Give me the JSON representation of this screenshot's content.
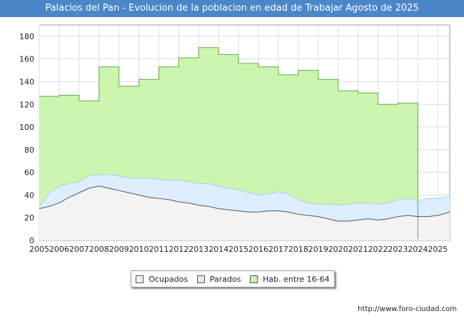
{
  "title": "Palacios del Pan - Evolucion de la poblacion en edad de Trabajar Agosto de 2025",
  "footer_url": "http://www.foro-ciudad.com",
  "chart_data": {
    "type": "area",
    "x_ticks": [
      "2005",
      "2006",
      "2007",
      "2008",
      "2009",
      "2010",
      "2011",
      "2012",
      "2013",
      "2014",
      "2015",
      "2016",
      "2017",
      "2018",
      "2019",
      "2020",
      "2021",
      "2022",
      "2023",
      "2024",
      "2025"
    ],
    "y_ticks": [
      0,
      20,
      40,
      60,
      80,
      100,
      120,
      140,
      160,
      180
    ],
    "ylim": [
      0,
      190
    ],
    "xlim": [
      2005,
      2025.6
    ],
    "grid": true,
    "legend_position": "bottom",
    "series": [
      {
        "name": "Ocupados",
        "color": "#555555",
        "fill": "#f3f3f3",
        "points": [
          [
            2005,
            28
          ],
          [
            2005.5,
            30
          ],
          [
            2006,
            33
          ],
          [
            2006.5,
            38
          ],
          [
            2007,
            42
          ],
          [
            2007.5,
            46
          ],
          [
            2008,
            48
          ],
          [
            2008.5,
            46
          ],
          [
            2009,
            44
          ],
          [
            2009.5,
            42
          ],
          [
            2010,
            40
          ],
          [
            2010.5,
            38
          ],
          [
            2011,
            37
          ],
          [
            2011.5,
            36
          ],
          [
            2012,
            34
          ],
          [
            2012.5,
            33
          ],
          [
            2013,
            31
          ],
          [
            2013.5,
            30
          ],
          [
            2014,
            28
          ],
          [
            2014.5,
            27
          ],
          [
            2015,
            26
          ],
          [
            2015.5,
            25
          ],
          [
            2016,
            25
          ],
          [
            2016.5,
            26
          ],
          [
            2017,
            26
          ],
          [
            2017.5,
            25
          ],
          [
            2018,
            23
          ],
          [
            2018.5,
            22
          ],
          [
            2019,
            21
          ],
          [
            2019.5,
            19
          ],
          [
            2020,
            17
          ],
          [
            2020.5,
            17
          ],
          [
            2021,
            18
          ],
          [
            2021.5,
            19
          ],
          [
            2022,
            18
          ],
          [
            2022.5,
            19
          ],
          [
            2023,
            21
          ],
          [
            2023.5,
            22
          ],
          [
            2024,
            21
          ],
          [
            2024.5,
            21
          ],
          [
            2025,
            22
          ],
          [
            2025.6,
            25
          ]
        ]
      },
      {
        "name": "Parados",
        "color": "#aaccee",
        "fill": "#ddeeff",
        "points": [
          [
            2005,
            30
          ],
          [
            2005.5,
            42
          ],
          [
            2006,
            48
          ],
          [
            2006.5,
            50
          ],
          [
            2007,
            52
          ],
          [
            2007.5,
            57
          ],
          [
            2008,
            58
          ],
          [
            2008.5,
            58
          ],
          [
            2009,
            57
          ],
          [
            2009.5,
            55
          ],
          [
            2010,
            55
          ],
          [
            2010.5,
            55
          ],
          [
            2011,
            54
          ],
          [
            2011.5,
            53
          ],
          [
            2012,
            53
          ],
          [
            2012.5,
            52
          ],
          [
            2013,
            50
          ],
          [
            2013.5,
            50
          ],
          [
            2014,
            48
          ],
          [
            2014.5,
            46
          ],
          [
            2015,
            45
          ],
          [
            2015.5,
            42
          ],
          [
            2016,
            40
          ],
          [
            2016.5,
            41
          ],
          [
            2017,
            43
          ],
          [
            2017.5,
            41
          ],
          [
            2018,
            36
          ],
          [
            2018.5,
            33
          ],
          [
            2019,
            32
          ],
          [
            2019.5,
            32
          ],
          [
            2020,
            31
          ],
          [
            2020.5,
            32
          ],
          [
            2021,
            33
          ],
          [
            2021.5,
            33
          ],
          [
            2022,
            32
          ],
          [
            2022.5,
            33
          ],
          [
            2023,
            36
          ],
          [
            2023.5,
            37
          ],
          [
            2024,
            35
          ],
          [
            2024.5,
            37
          ],
          [
            2025,
            37
          ],
          [
            2025.6,
            39
          ]
        ]
      },
      {
        "name": "Hab. entre 16-64",
        "color": "#66aa44",
        "fill": "#ccf5b0",
        "steps": [
          {
            "from": 2005,
            "to": 2006,
            "value": 127
          },
          {
            "from": 2006,
            "to": 2007,
            "value": 128
          },
          {
            "from": 2007,
            "to": 2008,
            "value": 123
          },
          {
            "from": 2008,
            "to": 2009,
            "value": 153
          },
          {
            "from": 2009,
            "to": 2010,
            "value": 136
          },
          {
            "from": 2010,
            "to": 2011,
            "value": 142
          },
          {
            "from": 2011,
            "to": 2012,
            "value": 153
          },
          {
            "from": 2012,
            "to": 2013,
            "value": 161
          },
          {
            "from": 2013,
            "to": 2014,
            "value": 170
          },
          {
            "from": 2014,
            "to": 2015,
            "value": 164
          },
          {
            "from": 2015,
            "to": 2016,
            "value": 156
          },
          {
            "from": 2016,
            "to": 2017,
            "value": 153
          },
          {
            "from": 2017,
            "to": 2018,
            "value": 146
          },
          {
            "from": 2018,
            "to": 2019,
            "value": 150
          },
          {
            "from": 2019,
            "to": 2020,
            "value": 142
          },
          {
            "from": 2020,
            "to": 2021,
            "value": 132
          },
          {
            "from": 2021,
            "to": 2022,
            "value": 130
          },
          {
            "from": 2022,
            "to": 2023,
            "value": 120
          },
          {
            "from": 2023,
            "to": 2024,
            "value": 121
          }
        ]
      }
    ]
  }
}
